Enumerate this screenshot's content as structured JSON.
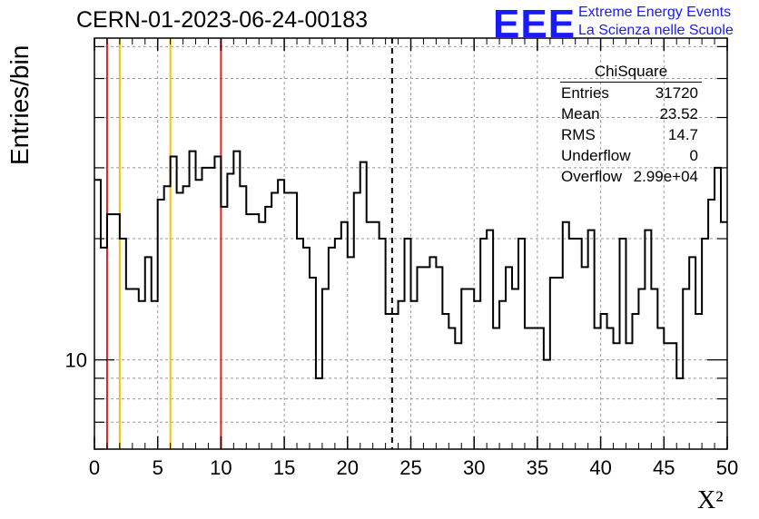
{
  "header": {
    "title": "CERN-01-2023-06-24-00183",
    "logo_text": "EEE",
    "logo_line1": "Extreme Energy Events",
    "logo_line2": "La Scienza nelle Scuole"
  },
  "stats_box": {
    "title": "ChiSquare",
    "rows": [
      {
        "key": "Entries",
        "value": "31720"
      },
      {
        "key": "Mean",
        "value": "23.52"
      },
      {
        "key": "RMS",
        "value": "14.7"
      },
      {
        "key": "Underflow",
        "value": "0"
      },
      {
        "key": "Overflow",
        "value": "2.99e+04"
      }
    ]
  },
  "colors": {
    "red": "#dd2222",
    "yellow": "#f5c400",
    "line": "#000000",
    "grid": "#999999",
    "logo": "#1a1aff"
  },
  "chart_data": {
    "type": "histogram",
    "ylabel": "Entries/bin",
    "xlabel": "X²",
    "x_range": [
      0,
      50
    ],
    "y_scale": "log",
    "y_range": [
      6,
      63
    ],
    "bin_width": 0.5,
    "x_ticks": [
      0,
      5,
      10,
      15,
      20,
      25,
      30,
      35,
      40,
      45,
      50
    ],
    "y_tick_labels": [
      {
        "value": 10,
        "label": "10"
      }
    ],
    "grid": true,
    "vertical_lines": [
      {
        "x": 1,
        "color": "red",
        "style": "solid"
      },
      {
        "x": 2,
        "color": "yellow",
        "style": "solid"
      },
      {
        "x": 6,
        "color": "yellow",
        "style": "solid"
      },
      {
        "x": 10,
        "color": "red",
        "style": "solid"
      },
      {
        "x": 23.52,
        "color": "black",
        "style": "dashed"
      }
    ],
    "bin_contents": [
      28,
      19,
      23,
      23,
      20,
      15,
      15,
      14,
      18,
      14,
      25,
      27,
      32,
      26,
      27,
      33,
      28,
      30,
      30,
      32,
      24,
      29,
      33,
      27,
      23,
      23,
      22,
      24,
      26,
      28,
      26,
      26,
      20,
      19,
      16,
      9,
      15,
      19,
      20,
      22,
      18,
      26,
      31,
      22,
      22,
      20,
      13,
      13,
      14,
      20,
      14,
      17,
      17,
      18,
      17,
      13,
      12,
      11,
      15,
      15,
      14,
      20,
      21,
      12,
      14,
      17,
      15,
      20,
      12,
      12,
      12,
      10,
      16,
      16,
      22,
      20,
      20,
      17,
      21,
      12,
      13,
      12,
      11,
      20,
      11,
      13,
      15,
      21,
      15,
      12,
      11,
      11,
      9,
      15,
      18,
      13,
      20,
      25,
      30,
      22,
      19
    ]
  }
}
